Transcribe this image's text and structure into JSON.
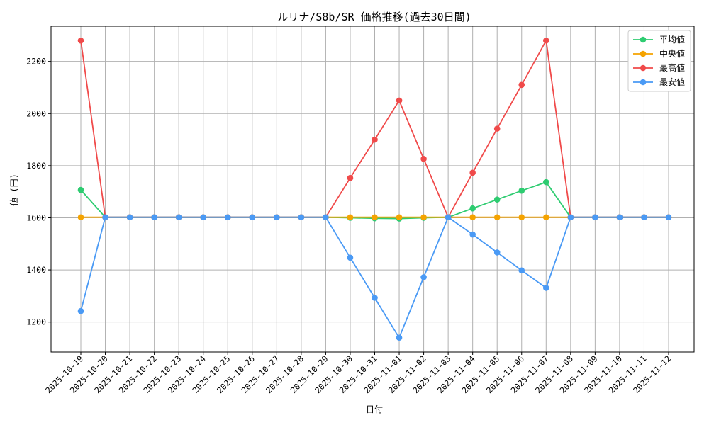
{
  "chart_data": {
    "type": "line",
    "title": "ルリナ/S8b/SR 価格推移(過去30日間)",
    "xlabel": "日付",
    "ylabel": "値 (円)",
    "ylim": [
      1085,
      2335
    ],
    "yticks": [
      1200,
      1400,
      1600,
      1800,
      2000,
      2200
    ],
    "grid": true,
    "legend_position": "top-right",
    "categories": [
      "2025-10-19",
      "2025-10-20",
      "2025-10-21",
      "2025-10-22",
      "2025-10-23",
      "2025-10-24",
      "2025-10-25",
      "2025-10-26",
      "2025-10-27",
      "2025-10-28",
      "2025-10-29",
      "2025-10-30",
      "2025-10-31",
      "2025-11-01",
      "2025-11-02",
      "2025-11-03",
      "2025-11-04",
      "2025-11-05",
      "2025-11-06",
      "2025-11-07",
      "2025-11-08",
      "2025-11-09",
      "2025-11-10",
      "2025-11-11",
      "2025-11-12"
    ],
    "series": [
      {
        "name": "平均値",
        "color": "#2ecc71",
        "values": [
          1707,
          1602,
          1602,
          1602,
          1602,
          1602,
          1602,
          1602,
          1602,
          1602,
          1602,
          1600,
          1598,
          1597,
          1600,
          1602,
          1636,
          1670,
          1704,
          1737,
          1602,
          1602,
          1602,
          1602,
          1602
        ]
      },
      {
        "name": " 中央値",
        "color": "#f5a300",
        "values": [
          1602,
          1602,
          1602,
          1602,
          1602,
          1602,
          1602,
          1602,
          1602,
          1602,
          1602,
          1602,
          1602,
          1602,
          1602,
          1602,
          1602,
          1602,
          1602,
          1602,
          1602,
          1602,
          1602,
          1602,
          1602
        ]
      },
      {
        "name": "最高値",
        "color": "#f04a4a",
        "values": [
          2280,
          1602,
          1602,
          1602,
          1602,
          1602,
          1602,
          1602,
          1602,
          1602,
          1602,
          1753,
          1900,
          2050,
          1826,
          1602,
          1773,
          1942,
          2110,
          2280,
          1602,
          1602,
          1602,
          1602,
          1602
        ]
      },
      {
        "name": "最安値",
        "color": "#4a9af5",
        "values": [
          1242,
          1602,
          1602,
          1602,
          1602,
          1602,
          1602,
          1602,
          1602,
          1602,
          1602,
          1447,
          1293,
          1140,
          1372,
          1602,
          1536,
          1467,
          1398,
          1331,
          1602,
          1602,
          1602,
          1602,
          1602
        ]
      }
    ]
  }
}
